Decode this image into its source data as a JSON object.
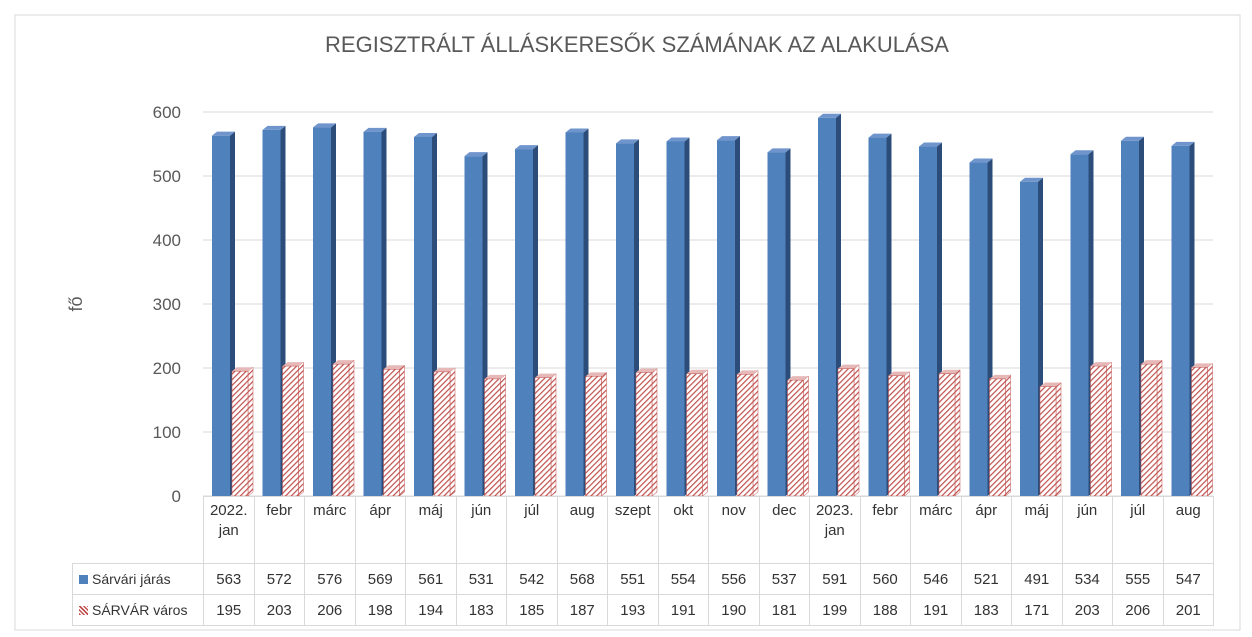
{
  "chart_data": {
    "type": "bar3d",
    "title": "REGISZTRÁLT ÁLLÁSKERESŐK SZÁMÁNAK AZ ALAKULÁSA",
    "y_label": "fő",
    "categories": [
      "2022. jan",
      "febr",
      "márc",
      "ápr",
      "máj",
      "jún",
      "júl",
      "aug",
      "szept",
      "okt",
      "nov",
      "dec",
      "2023. jan",
      "febr",
      "márc",
      "ápr",
      "máj",
      "jún",
      "júl",
      "aug"
    ],
    "series": [
      {
        "name": "Sárvári járás",
        "color": "#4f81bd",
        "values": [
          563,
          572,
          576,
          569,
          561,
          531,
          542,
          568,
          551,
          554,
          556,
          537,
          591,
          560,
          546,
          521,
          491,
          534,
          555,
          547
        ]
      },
      {
        "name": "SÁRVÁR város",
        "color": "#c0504d",
        "values": [
          195,
          203,
          206,
          198,
          194,
          183,
          185,
          187,
          193,
          191,
          190,
          181,
          199,
          188,
          191,
          183,
          171,
          203,
          206,
          201
        ]
      }
    ],
    "ylim": [
      0,
      600
    ],
    "yticks": [
      0,
      100,
      200,
      300,
      400,
      500,
      600
    ],
    "grid": true
  }
}
